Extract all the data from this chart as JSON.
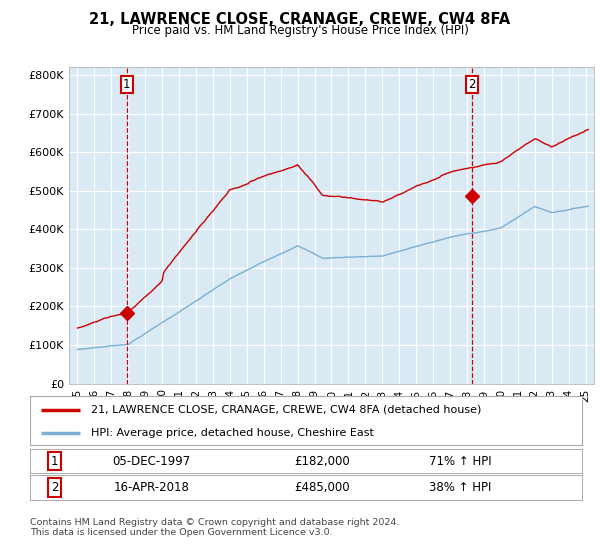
{
  "title": "21, LAWRENCE CLOSE, CRANAGE, CREWE, CW4 8FA",
  "subtitle": "Price paid vs. HM Land Registry's House Price Index (HPI)",
  "legend_line1": "21, LAWRENCE CLOSE, CRANAGE, CREWE, CW4 8FA (detached house)",
  "legend_line2": "HPI: Average price, detached house, Cheshire East",
  "footnote": "Contains HM Land Registry data © Crown copyright and database right 2024.\nThis data is licensed under the Open Government Licence v3.0.",
  "sale1_label": "1",
  "sale1_date": "05-DEC-1997",
  "sale1_price": "£182,000",
  "sale1_hpi": "71% ↑ HPI",
  "sale2_label": "2",
  "sale2_date": "16-APR-2018",
  "sale2_price": "£485,000",
  "sale2_hpi": "38% ↑ HPI",
  "sale1_x": 1997.92,
  "sale1_y": 182000,
  "sale2_x": 2018.29,
  "sale2_y": 485000,
  "hpi_color": "#7bafd4",
  "price_color": "#cc0000",
  "dashed_color": "#cc0000",
  "plot_bg": "#daeaf5",
  "ylim": [
    0,
    820000
  ],
  "xlim": [
    1994.5,
    2025.5
  ],
  "yticks": [
    0,
    100000,
    200000,
    300000,
    400000,
    500000,
    600000,
    700000,
    800000
  ],
  "ytick_labels": [
    "£0",
    "£100K",
    "£200K",
    "£300K",
    "£400K",
    "£500K",
    "£600K",
    "£700K",
    "£800K"
  ],
  "xticks": [
    1995,
    1996,
    1997,
    1998,
    1999,
    2000,
    2001,
    2002,
    2003,
    2004,
    2005,
    2006,
    2007,
    2008,
    2009,
    2010,
    2011,
    2012,
    2013,
    2014,
    2015,
    2016,
    2017,
    2018,
    2019,
    2020,
    2021,
    2022,
    2023,
    2024,
    2025
  ]
}
